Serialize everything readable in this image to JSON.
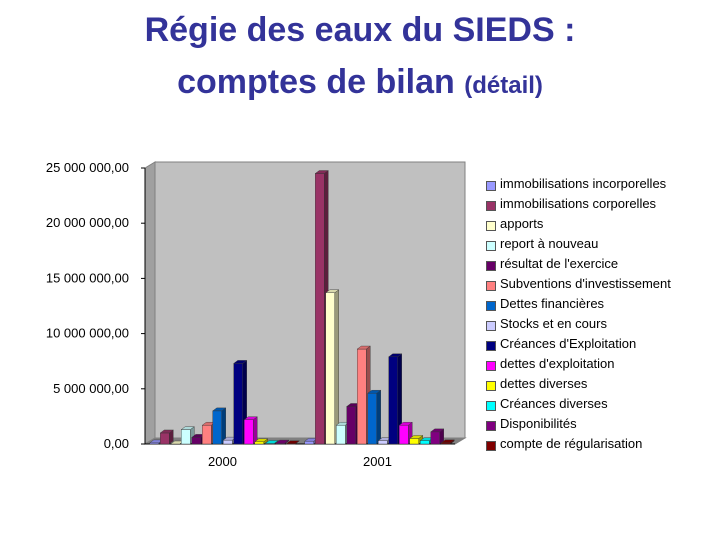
{
  "title_line1": "Régie des eaux du SIEDS :",
  "title_line2_main": "comptes de bilan",
  "title_line2_small": "(détail)",
  "chart_data": {
    "type": "bar",
    "categories": [
      "2000",
      "2001"
    ],
    "ylim": [
      0,
      25000000
    ],
    "yticks": [
      0,
      5000000,
      10000000,
      15000000,
      20000000,
      25000000
    ],
    "ytick_labels": [
      "0,00",
      "5 000 000,00",
      "10 000 000,00",
      "15 000 000,00",
      "20 000 000,00",
      "25 000 000,00"
    ],
    "grid": false,
    "legend_position": "right",
    "series": [
      {
        "name": "immobilisations incorporelles",
        "color": "#9999FF",
        "values": [
          100000,
          250000
        ]
      },
      {
        "name": "immobilisations corporelles",
        "color": "#993366",
        "values": [
          1000000,
          24500000
        ]
      },
      {
        "name": "apports",
        "color": "#FFFFCC",
        "values": [
          0,
          13700000
        ]
      },
      {
        "name": "report à nouveau",
        "color": "#CCFFFF",
        "values": [
          1300000,
          1700000
        ]
      },
      {
        "name": "résultat de l'exercice",
        "color": "#660066",
        "values": [
          600000,
          3400000
        ]
      },
      {
        "name": "Subventions d'investissement",
        "color": "#FF8080",
        "values": [
          1700000,
          8600000
        ]
      },
      {
        "name": "Dettes financières",
        "color": "#0066CC",
        "values": [
          3000000,
          4600000
        ]
      },
      {
        "name": "Stocks et en cours",
        "color": "#CCCCFF",
        "values": [
          350000,
          300000
        ]
      },
      {
        "name": "Créances d'Exploitation",
        "color": "#000080",
        "values": [
          7300000,
          7900000
        ]
      },
      {
        "name": "dettes d'exploitation",
        "color": "#FF00FF",
        "values": [
          2200000,
          1700000
        ]
      },
      {
        "name": "dettes diverses",
        "color": "#FFFF00",
        "values": [
          200000,
          500000
        ]
      },
      {
        "name": "Créances diverses",
        "color": "#00FFFF",
        "values": [
          50000,
          300000
        ]
      },
      {
        "name": "Disponibilités",
        "color": "#800080",
        "values": [
          80000,
          1100000
        ]
      },
      {
        "name": "compte de régularisation",
        "color": "#800000",
        "values": [
          20000,
          100000
        ]
      }
    ]
  }
}
